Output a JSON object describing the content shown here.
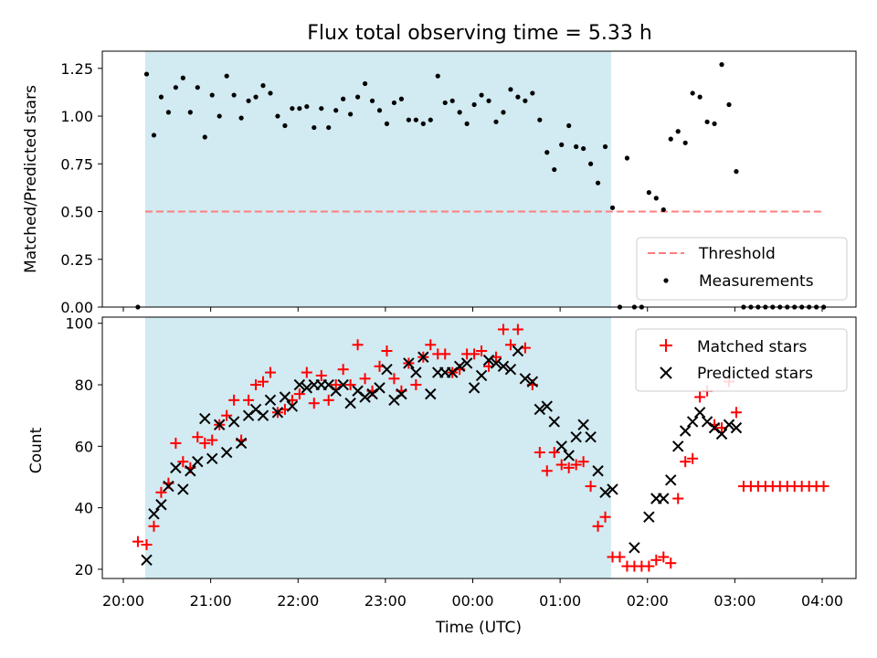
{
  "chart_data": {
    "type": "scatter",
    "title": "Flux total observing time = 5.33 h",
    "xlabel": "Time (UTC)",
    "x_ticks": [
      "20:00",
      "21:00",
      "22:00",
      "23:00",
      "00:00",
      "01:00",
      "02:00",
      "03:00",
      "04:00"
    ],
    "shaded_window": {
      "start": "20:15",
      "end": "01:35"
    },
    "colors": {
      "shade": "#add8e6",
      "threshold": "#ff7f7f",
      "measurements": "#000000",
      "matched": "#ff0000",
      "predicted": "#000000"
    },
    "top": {
      "ylabel": "Matched/Predicted stars",
      "ylim": [
        0,
        1.34
      ],
      "y_ticks": [
        "0.00",
        "0.25",
        "0.50",
        "0.75",
        "1.00",
        "1.25"
      ],
      "legend_position": "lower-right",
      "threshold": {
        "name": "Threshold",
        "value": 0.5,
        "from": "20:15",
        "to": "04:00"
      },
      "measurements": {
        "name": "Measurements",
        "points": [
          [
            "20:10",
            0.0
          ],
          [
            "20:16",
            1.22
          ],
          [
            "20:21",
            0.9
          ],
          [
            "20:26",
            1.1
          ],
          [
            "20:31",
            1.02
          ],
          [
            "20:36",
            1.15
          ],
          [
            "20:41",
            1.2
          ],
          [
            "20:46",
            1.02
          ],
          [
            "20:51",
            1.15
          ],
          [
            "20:56",
            0.89
          ],
          [
            "21:01",
            1.11
          ],
          [
            "21:06",
            1.0
          ],
          [
            "21:11",
            1.21
          ],
          [
            "21:16",
            1.11
          ],
          [
            "21:21",
            0.99
          ],
          [
            "21:26",
            1.08
          ],
          [
            "21:31",
            1.1
          ],
          [
            "21:36",
            1.16
          ],
          [
            "21:41",
            1.12
          ],
          [
            "21:46",
            1.0
          ],
          [
            "21:51",
            0.95
          ],
          [
            "21:56",
            1.04
          ],
          [
            "22:01",
            1.04
          ],
          [
            "22:06",
            1.05
          ],
          [
            "22:11",
            0.94
          ],
          [
            "22:16",
            1.04
          ],
          [
            "22:21",
            0.94
          ],
          [
            "22:26",
            1.03
          ],
          [
            "22:31",
            1.09
          ],
          [
            "22:36",
            1.01
          ],
          [
            "22:41",
            1.1
          ],
          [
            "22:46",
            1.17
          ],
          [
            "22:51",
            1.08
          ],
          [
            "22:56",
            1.03
          ],
          [
            "23:01",
            0.96
          ],
          [
            "23:06",
            1.07
          ],
          [
            "23:11",
            1.09
          ],
          [
            "23:16",
            0.98
          ],
          [
            "23:21",
            0.98
          ],
          [
            "23:26",
            0.96
          ],
          [
            "23:31",
            0.98
          ],
          [
            "23:36",
            1.21
          ],
          [
            "23:41",
            1.07
          ],
          [
            "23:46",
            1.08
          ],
          [
            "23:51",
            1.02
          ],
          [
            "23:56",
            0.96
          ],
          [
            "00:01",
            1.06
          ],
          [
            "00:06",
            1.11
          ],
          [
            "00:11",
            1.08
          ],
          [
            "00:16",
            0.97
          ],
          [
            "00:21",
            1.02
          ],
          [
            "00:26",
            1.14
          ],
          [
            "00:31",
            1.1
          ],
          [
            "00:36",
            1.08
          ],
          [
            "00:41",
            1.12
          ],
          [
            "00:46",
            0.98
          ],
          [
            "00:51",
            0.81
          ],
          [
            "00:56",
            0.72
          ],
          [
            "01:01",
            0.85
          ],
          [
            "01:06",
            0.95
          ],
          [
            "01:11",
            0.84
          ],
          [
            "01:16",
            0.83
          ],
          [
            "01:21",
            0.75
          ],
          [
            "01:26",
            0.65
          ],
          [
            "01:31",
            0.84
          ],
          [
            "01:36",
            0.52
          ],
          [
            "01:41",
            0.0
          ],
          [
            "01:46",
            0.78
          ],
          [
            "01:51",
            0.0
          ],
          [
            "01:56",
            0.0
          ],
          [
            "02:01",
            0.6
          ],
          [
            "02:06",
            0.57
          ],
          [
            "02:11",
            0.51
          ],
          [
            "02:16",
            0.88
          ],
          [
            "02:21",
            0.92
          ],
          [
            "02:26",
            0.86
          ],
          [
            "02:31",
            1.12
          ],
          [
            "02:36",
            1.1
          ],
          [
            "02:41",
            0.97
          ],
          [
            "02:46",
            0.96
          ],
          [
            "02:51",
            1.27
          ],
          [
            "02:56",
            1.06
          ],
          [
            "03:01",
            0.71
          ],
          [
            "03:06",
            0.0
          ],
          [
            "03:11",
            0.0
          ],
          [
            "03:16",
            0.0
          ],
          [
            "03:21",
            0.0
          ],
          [
            "03:26",
            0.0
          ],
          [
            "03:31",
            0.0
          ],
          [
            "03:36",
            0.0
          ],
          [
            "03:41",
            0.0
          ],
          [
            "03:46",
            0.0
          ],
          [
            "03:51",
            0.0
          ],
          [
            "03:56",
            0.0
          ],
          [
            "04:01",
            0.0
          ]
        ]
      }
    },
    "bottom": {
      "ylabel": "Count",
      "ylim": [
        17,
        102
      ],
      "y_ticks": [
        "20",
        "40",
        "60",
        "80",
        "100"
      ],
      "legend_position": "upper-right",
      "series": [
        {
          "name": "Matched stars",
          "marker": "plus",
          "points": [
            [
              "20:10",
              29
            ],
            [
              "20:16",
              28
            ],
            [
              "20:21",
              34
            ],
            [
              "20:26",
              45
            ],
            [
              "20:31",
              48
            ],
            [
              "20:36",
              61
            ],
            [
              "20:41",
              55
            ],
            [
              "20:46",
              53
            ],
            [
              "20:51",
              63
            ],
            [
              "20:56",
              61
            ],
            [
              "21:01",
              62
            ],
            [
              "21:06",
              67
            ],
            [
              "21:11",
              70
            ],
            [
              "21:16",
              75
            ],
            [
              "21:21",
              62
            ],
            [
              "21:26",
              75
            ],
            [
              "21:31",
              80
            ],
            [
              "21:36",
              81
            ],
            [
              "21:41",
              84
            ],
            [
              "21:46",
              71
            ],
            [
              "21:51",
              72
            ],
            [
              "21:56",
              75
            ],
            [
              "22:01",
              77
            ],
            [
              "22:06",
              84
            ],
            [
              "22:11",
              74
            ],
            [
              "22:16",
              83
            ],
            [
              "22:21",
              75
            ],
            [
              "22:26",
              80
            ],
            [
              "22:31",
              85
            ],
            [
              "22:36",
              80
            ],
            [
              "22:41",
              93
            ],
            [
              "22:46",
              82
            ],
            [
              "22:51",
              78
            ],
            [
              "22:56",
              86
            ],
            [
              "23:01",
              91
            ],
            [
              "23:06",
              82
            ],
            [
              "23:11",
              78
            ],
            [
              "23:16",
              87
            ],
            [
              "23:21",
              80
            ],
            [
              "23:26",
              89
            ],
            [
              "23:31",
              93
            ],
            [
              "23:36",
              90
            ],
            [
              "23:41",
              90
            ],
            [
              "23:46",
              84
            ],
            [
              "23:51",
              85
            ],
            [
              "23:56",
              90
            ],
            [
              "00:01",
              90
            ],
            [
              "00:06",
              91
            ],
            [
              "00:11",
              86
            ],
            [
              "00:16",
              89
            ],
            [
              "00:21",
              98
            ],
            [
              "00:26",
              93
            ],
            [
              "00:31",
              98
            ],
            [
              "00:36",
              92
            ],
            [
              "00:41",
              80
            ],
            [
              "00:46",
              58
            ],
            [
              "00:51",
              52
            ],
            [
              "00:56",
              58
            ],
            [
              "01:01",
              54
            ],
            [
              "01:06",
              53
            ],
            [
              "01:11",
              54
            ],
            [
              "01:16",
              55
            ],
            [
              "01:21",
              47
            ],
            [
              "01:26",
              34
            ],
            [
              "01:31",
              37
            ],
            [
              "01:36",
              24
            ],
            [
              "01:41",
              24
            ],
            [
              "01:46",
              21
            ],
            [
              "01:51",
              21
            ],
            [
              "01:56",
              21
            ],
            [
              "02:01",
              21
            ],
            [
              "02:06",
              23
            ],
            [
              "02:11",
              24
            ],
            [
              "02:16",
              22
            ],
            [
              "02:21",
              43
            ],
            [
              "02:26",
              55
            ],
            [
              "02:31",
              56
            ],
            [
              "02:36",
              76
            ],
            [
              "02:41",
              78
            ],
            [
              "02:46",
              67
            ],
            [
              "02:51",
              66
            ],
            [
              "02:56",
              81
            ],
            [
              "03:01",
              71
            ],
            [
              "03:06",
              47
            ],
            [
              "03:11",
              47
            ],
            [
              "03:16",
              47
            ],
            [
              "03:21",
              47
            ],
            [
              "03:26",
              47
            ],
            [
              "03:31",
              47
            ],
            [
              "03:36",
              47
            ],
            [
              "03:41",
              47
            ],
            [
              "03:46",
              47
            ],
            [
              "03:51",
              47
            ],
            [
              "03:56",
              47
            ],
            [
              "04:01",
              47
            ]
          ]
        },
        {
          "name": "Predicted stars",
          "marker": "x",
          "points": [
            [
              "20:16",
              23
            ],
            [
              "20:21",
              38
            ],
            [
              "20:26",
              41
            ],
            [
              "20:31",
              47
            ],
            [
              "20:36",
              53
            ],
            [
              "20:41",
              46
            ],
            [
              "20:46",
              52
            ],
            [
              "20:51",
              55
            ],
            [
              "20:56",
              69
            ],
            [
              "21:01",
              56
            ],
            [
              "21:06",
              67
            ],
            [
              "21:11",
              58
            ],
            [
              "21:16",
              68
            ],
            [
              "21:21",
              61
            ],
            [
              "21:26",
              70
            ],
            [
              "21:31",
              72
            ],
            [
              "21:36",
              70
            ],
            [
              "21:41",
              75
            ],
            [
              "21:46",
              71
            ],
            [
              "21:51",
              76
            ],
            [
              "21:56",
              73
            ],
            [
              "22:01",
              80
            ],
            [
              "22:06",
              79
            ],
            [
              "22:11",
              80
            ],
            [
              "22:16",
              80
            ],
            [
              "22:21",
              80
            ],
            [
              "22:26",
              78
            ],
            [
              "22:31",
              80
            ],
            [
              "22:36",
              74
            ],
            [
              "22:41",
              78
            ],
            [
              "22:46",
              76
            ],
            [
              "22:51",
              77
            ],
            [
              "22:56",
              79
            ],
            [
              "23:01",
              85
            ],
            [
              "23:06",
              75
            ],
            [
              "23:11",
              77
            ],
            [
              "23:16",
              87
            ],
            [
              "23:21",
              84
            ],
            [
              "23:26",
              89
            ],
            [
              "23:31",
              77
            ],
            [
              "23:36",
              84
            ],
            [
              "23:41",
              84
            ],
            [
              "23:46",
              84
            ],
            [
              "23:51",
              86
            ],
            [
              "23:56",
              87
            ],
            [
              "00:01",
              79
            ],
            [
              "00:06",
              83
            ],
            [
              "00:11",
              88
            ],
            [
              "00:16",
              87
            ],
            [
              "00:21",
              86
            ],
            [
              "00:26",
              85
            ],
            [
              "00:31",
              91
            ],
            [
              "00:36",
              82
            ],
            [
              "00:41",
              81
            ],
            [
              "00:46",
              72
            ],
            [
              "00:51",
              73
            ],
            [
              "00:56",
              68
            ],
            [
              "01:01",
              60
            ],
            [
              "01:06",
              57
            ],
            [
              "01:11",
              63
            ],
            [
              "01:16",
              67
            ],
            [
              "01:21",
              63
            ],
            [
              "01:26",
              52
            ],
            [
              "01:31",
              45
            ],
            [
              "01:36",
              46
            ],
            [
              "01:51",
              27
            ],
            [
              "02:01",
              37
            ],
            [
              "02:06",
              43
            ],
            [
              "02:11",
              43
            ],
            [
              "02:16",
              49
            ],
            [
              "02:21",
              60
            ],
            [
              "02:26",
              65
            ],
            [
              "02:31",
              68
            ],
            [
              "02:36",
              71
            ],
            [
              "02:41",
              68
            ],
            [
              "02:46",
              66
            ],
            [
              "02:51",
              64
            ],
            [
              "02:56",
              67
            ],
            [
              "03:01",
              66
            ]
          ]
        }
      ]
    }
  }
}
